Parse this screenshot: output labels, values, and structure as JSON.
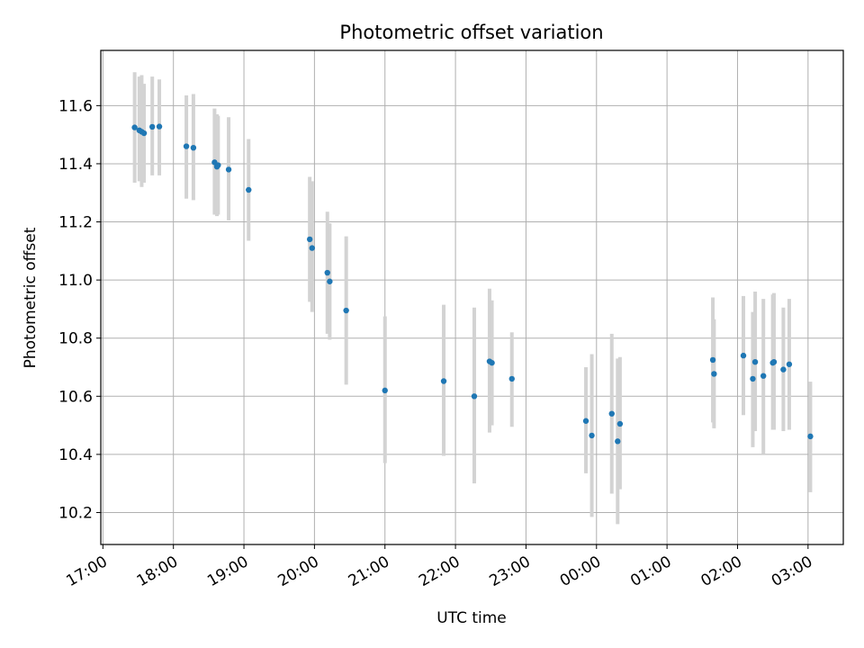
{
  "chart_data": {
    "type": "scatter",
    "title": "Photometric offset variation",
    "xlabel": "UTC time",
    "ylabel": "Photometric offset",
    "x_ticks": [
      "17:00",
      "18:00",
      "19:00",
      "20:00",
      "21:00",
      "22:00",
      "23:00",
      "00:00",
      "01:00",
      "02:00",
      "03:00"
    ],
    "y_ticks": [
      "10.2",
      "10.4",
      "10.6",
      "10.8",
      "11.0",
      "11.2",
      "11.4",
      "11.6"
    ],
    "y_tick_values": [
      10.2,
      10.4,
      10.6,
      10.8,
      11.0,
      11.2,
      11.4,
      11.6
    ],
    "xlim_hours": [
      16.97,
      27.5
    ],
    "ylim": [
      10.09,
      11.79
    ],
    "grid": true,
    "point_color": "#1f77b4",
    "errorbar_color": "#d3d3d3",
    "points": [
      {
        "t": "17:27",
        "y": 11.525,
        "lo": 11.335,
        "hi": 11.715
      },
      {
        "t": "17:31",
        "y": 11.515,
        "lo": 11.34,
        "hi": 11.7
      },
      {
        "t": "17:33",
        "y": 11.51,
        "lo": 11.32,
        "hi": 11.705
      },
      {
        "t": "17:35",
        "y": 11.505,
        "lo": 11.335,
        "hi": 11.675
      },
      {
        "t": "17:42",
        "y": 11.527,
        "lo": 11.36,
        "hi": 11.7
      },
      {
        "t": "17:48",
        "y": 11.528,
        "lo": 11.36,
        "hi": 11.69
      },
      {
        "t": "18:11",
        "y": 11.46,
        "lo": 11.28,
        "hi": 11.635
      },
      {
        "t": "18:17",
        "y": 11.455,
        "lo": 11.275,
        "hi": 11.64
      },
      {
        "t": "18:35",
        "y": 11.405,
        "lo": 11.225,
        "hi": 11.59
      },
      {
        "t": "18:37",
        "y": 11.39,
        "lo": 11.22,
        "hi": 11.57
      },
      {
        "t": "18:38",
        "y": 11.395,
        "lo": 11.225,
        "hi": 11.565
      },
      {
        "t": "18:47",
        "y": 11.38,
        "lo": 11.205,
        "hi": 11.56
      },
      {
        "t": "19:04",
        "y": 11.31,
        "lo": 11.135,
        "hi": 11.485
      },
      {
        "t": "19:56",
        "y": 11.14,
        "lo": 10.925,
        "hi": 11.355
      },
      {
        "t": "19:58",
        "y": 11.11,
        "lo": 10.89,
        "hi": 11.34
      },
      {
        "t": "20:11",
        "y": 11.025,
        "lo": 10.815,
        "hi": 11.235
      },
      {
        "t": "20:13",
        "y": 10.995,
        "lo": 10.795,
        "hi": 11.195
      },
      {
        "t": "20:27",
        "y": 10.895,
        "lo": 10.64,
        "hi": 11.15
      },
      {
        "t": "21:00",
        "y": 10.62,
        "lo": 10.37,
        "hi": 10.875
      },
      {
        "t": "21:50",
        "y": 10.652,
        "lo": 10.395,
        "hi": 10.915
      },
      {
        "t": "22:16",
        "y": 10.6,
        "lo": 10.3,
        "hi": 10.905
      },
      {
        "t": "22:29",
        "y": 10.72,
        "lo": 10.475,
        "hi": 10.97
      },
      {
        "t": "22:31",
        "y": 10.715,
        "lo": 10.5,
        "hi": 10.93
      },
      {
        "t": "22:48",
        "y": 10.66,
        "lo": 10.495,
        "hi": 10.82
      },
      {
        "t": "23:51",
        "y": 10.515,
        "lo": 10.335,
        "hi": 10.7
      },
      {
        "t": "23:56",
        "y": 10.465,
        "lo": 10.185,
        "hi": 10.745
      },
      {
        "t": "00:13",
        "y": 10.54,
        "lo": 10.265,
        "hi": 10.815
      },
      {
        "t": "00:18",
        "y": 10.445,
        "lo": 10.16,
        "hi": 10.73
      },
      {
        "t": "00:20",
        "y": 10.505,
        "lo": 10.28,
        "hi": 10.735
      },
      {
        "t": "01:39",
        "y": 10.725,
        "lo": 10.51,
        "hi": 10.94
      },
      {
        "t": "01:40",
        "y": 10.677,
        "lo": 10.49,
        "hi": 10.865
      },
      {
        "t": "02:05",
        "y": 10.74,
        "lo": 10.535,
        "hi": 10.945
      },
      {
        "t": "02:13",
        "y": 10.66,
        "lo": 10.425,
        "hi": 10.89
      },
      {
        "t": "02:15",
        "y": 10.718,
        "lo": 10.48,
        "hi": 10.96
      },
      {
        "t": "02:22",
        "y": 10.67,
        "lo": 10.4,
        "hi": 10.935
      },
      {
        "t": "02:30",
        "y": 10.715,
        "lo": 10.485,
        "hi": 10.95
      },
      {
        "t": "02:31",
        "y": 10.718,
        "lo": 10.485,
        "hi": 10.955
      },
      {
        "t": "02:39",
        "y": 10.692,
        "lo": 10.48,
        "hi": 10.905
      },
      {
        "t": "02:44",
        "y": 10.71,
        "lo": 10.485,
        "hi": 10.935
      },
      {
        "t": "03:02",
        "y": 10.462,
        "lo": 10.27,
        "hi": 10.65
      }
    ]
  }
}
